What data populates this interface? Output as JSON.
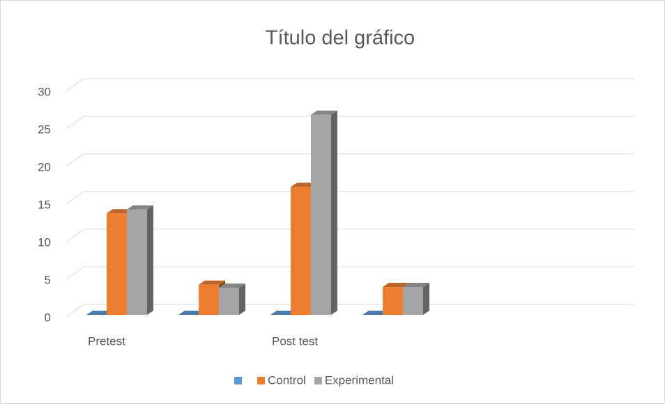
{
  "chart_data": {
    "type": "bar3d",
    "title": "Título del gráfico",
    "categories": [
      "Pretest",
      null,
      "Post test",
      null,
      null,
      null
    ],
    "series": [
      {
        "name": null,
        "color": "#5b9bd5",
        "values": [
          0,
          0,
          0,
          0,
          null,
          null
        ]
      },
      {
        "name": "Control",
        "color": "#ed7d31",
        "values": [
          13.5,
          4,
          17,
          3.7,
          null,
          null
        ]
      },
      {
        "name": "Experimental",
        "color": "#a5a5a5",
        "values": [
          14,
          3.6,
          26.6,
          3.7,
          null,
          null
        ]
      }
    ],
    "ylim": [
      0,
      30
    ],
    "yticks": [
      0,
      5,
      10,
      15,
      20,
      25,
      30
    ],
    "grid": true,
    "legend": "bottom"
  }
}
